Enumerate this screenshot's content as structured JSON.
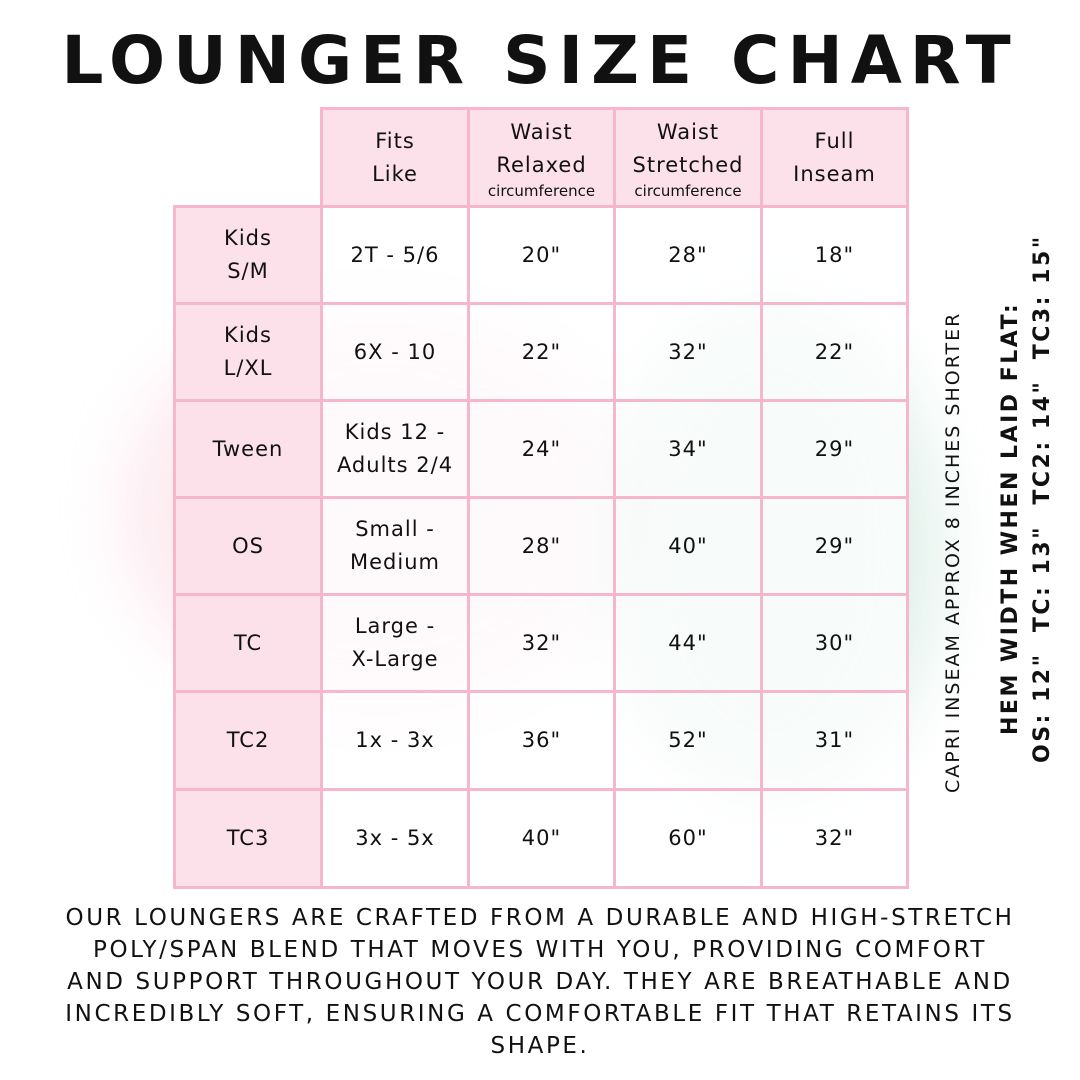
{
  "title": "LOUNGER SIZE CHART",
  "table": {
    "headers": [
      {
        "label": "Fits\nLike",
        "sub": ""
      },
      {
        "label": "Waist\nRelaxed",
        "sub": "circumference"
      },
      {
        "label": "Waist\nStretched",
        "sub": "circumference"
      },
      {
        "label": "Full\nInseam",
        "sub": ""
      }
    ],
    "rows": [
      {
        "size": "Kids\nS/M",
        "fits": "2T - 5/6",
        "relaxed": "20\"",
        "stretched": "28\"",
        "inseam": "18\""
      },
      {
        "size": "Kids\nL/XL",
        "fits": "6X - 10",
        "relaxed": "22\"",
        "stretched": "32\"",
        "inseam": "22\""
      },
      {
        "size": "Tween",
        "fits": "Kids 12 -\nAdults 2/4",
        "relaxed": "24\"",
        "stretched": "34\"",
        "inseam": "29\""
      },
      {
        "size": "OS",
        "fits": "Small -\nMedium",
        "relaxed": "28\"",
        "stretched": "40\"",
        "inseam": "29\""
      },
      {
        "size": "TC",
        "fits": "Large -\nX-Large",
        "relaxed": "32\"",
        "stretched": "44\"",
        "inseam": "30\""
      },
      {
        "size": "TC2",
        "fits": "1x - 3x",
        "relaxed": "36\"",
        "stretched": "52\"",
        "inseam": "31\""
      },
      {
        "size": "TC3",
        "fits": "3x - 5x",
        "relaxed": "40\"",
        "stretched": "60\"",
        "inseam": "32\""
      }
    ]
  },
  "side_notes": {
    "capri": "CAPRI INSEAM APPROX 8 INCHES SHORTER",
    "hem_title": "HEM WIDTH WHEN LAID FLAT:",
    "hem_values": "OS: 12\"  TC: 13\"  TC2: 14\"  TC3: 15\""
  },
  "description": "Our loungers are crafted from a durable and high-stretch poly/span blend that moves with you, providing comfort and support throughout your day. They are breathable and incredibly soft, ensuring a comfortable fit that retains its shape.",
  "colors": {
    "table_border": "#f6b6cc",
    "header_fill": "#fde1ea"
  }
}
